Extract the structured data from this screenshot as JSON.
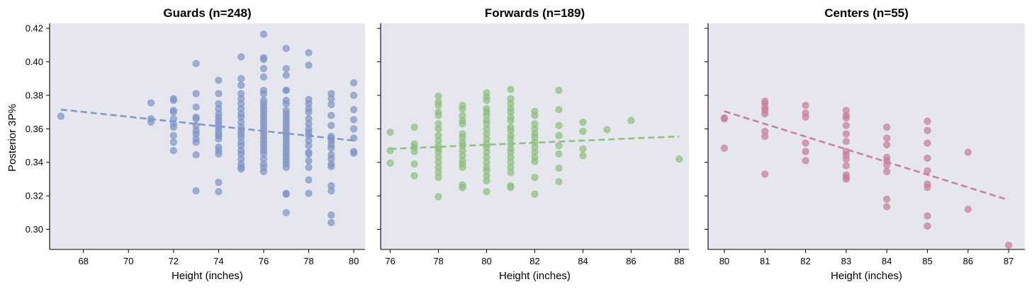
{
  "shared": {
    "ylabel": "Posterior 3P%",
    "xlabel": "Height (inches)"
  },
  "chart_data": [
    {
      "type": "scatter",
      "title": "Guards (n=248)",
      "xlabel": "Height (inches)",
      "ylabel": "Posterior 3P%",
      "color": "#7f96c8",
      "xlim": [
        66.5,
        80.5
      ],
      "ylim": [
        0.288,
        0.423
      ],
      "xticks": [
        "68",
        "70",
        "72",
        "74",
        "76",
        "78",
        "80"
      ],
      "yticks": [
        "0.30",
        "0.32",
        "0.34",
        "0.36",
        "0.38",
        "0.40",
        "0.42"
      ],
      "trend": {
        "x": [
          67,
          80
        ],
        "y": [
          0.3715,
          0.353
        ]
      },
      "points": [
        [
          67,
          0.3675
        ],
        [
          71,
          0.3755
        ],
        [
          71,
          0.366
        ],
        [
          71,
          0.364
        ],
        [
          72,
          0.378
        ],
        [
          72,
          0.377
        ],
        [
          72,
          0.371
        ],
        [
          72,
          0.37
        ],
        [
          72,
          0.366
        ],
        [
          72,
          0.363
        ],
        [
          72,
          0.361
        ],
        [
          72,
          0.356
        ],
        [
          72,
          0.352
        ],
        [
          72,
          0.347
        ],
        [
          73,
          0.399
        ],
        [
          73,
          0.381
        ],
        [
          73,
          0.373
        ],
        [
          73,
          0.367
        ],
        [
          73,
          0.366
        ],
        [
          73,
          0.362
        ],
        [
          73,
          0.359
        ],
        [
          73,
          0.357
        ],
        [
          73,
          0.354
        ],
        [
          73,
          0.352
        ],
        [
          73,
          0.3445
        ],
        [
          73,
          0.323
        ],
        [
          74,
          0.389
        ],
        [
          74,
          0.381
        ],
        [
          74,
          0.375
        ],
        [
          74,
          0.372
        ],
        [
          74,
          0.369
        ],
        [
          74,
          0.367
        ],
        [
          74,
          0.365
        ],
        [
          74,
          0.363
        ],
        [
          74,
          0.361
        ],
        [
          74,
          0.359
        ],
        [
          74,
          0.357
        ],
        [
          74,
          0.356
        ],
        [
          74,
          0.354
        ],
        [
          74,
          0.349
        ],
        [
          74,
          0.347
        ],
        [
          74,
          0.345
        ],
        [
          74,
          0.328
        ],
        [
          74,
          0.3225
        ],
        [
          75,
          0.403
        ],
        [
          75,
          0.39
        ],
        [
          75,
          0.386
        ],
        [
          75,
          0.381
        ],
        [
          75,
          0.378
        ],
        [
          75,
          0.375
        ],
        [
          75,
          0.372
        ],
        [
          75,
          0.369
        ],
        [
          75,
          0.367
        ],
        [
          75,
          0.364
        ],
        [
          75,
          0.361
        ],
        [
          75,
          0.359
        ],
        [
          75,
          0.357
        ],
        [
          75,
          0.355
        ],
        [
          75,
          0.352
        ],
        [
          75,
          0.35
        ],
        [
          75,
          0.347
        ],
        [
          75,
          0.345
        ],
        [
          75,
          0.342
        ],
        [
          75,
          0.339
        ],
        [
          75,
          0.337
        ],
        [
          75,
          0.336
        ],
        [
          76,
          0.4165
        ],
        [
          76,
          0.4025
        ],
        [
          76,
          0.4015
        ],
        [
          76,
          0.396
        ],
        [
          76,
          0.391
        ],
        [
          76,
          0.383
        ],
        [
          76,
          0.381
        ],
        [
          76,
          0.377
        ],
        [
          76,
          0.375
        ],
        [
          76,
          0.373
        ],
        [
          76,
          0.371
        ],
        [
          76,
          0.369
        ],
        [
          76,
          0.367
        ],
        [
          76,
          0.365
        ],
        [
          76,
          0.363
        ],
        [
          76,
          0.361
        ],
        [
          76,
          0.359
        ],
        [
          76,
          0.357
        ],
        [
          76,
          0.355
        ],
        [
          76,
          0.353
        ],
        [
          76,
          0.351
        ],
        [
          76,
          0.349
        ],
        [
          76,
          0.347
        ],
        [
          76,
          0.345
        ],
        [
          76,
          0.342
        ],
        [
          76,
          0.339
        ],
        [
          76,
          0.337
        ],
        [
          76,
          0.3345
        ],
        [
          77,
          0.408
        ],
        [
          77,
          0.396
        ],
        [
          77,
          0.392
        ],
        [
          77,
          0.383
        ],
        [
          77,
          0.383
        ],
        [
          77,
          0.377
        ],
        [
          77,
          0.375
        ],
        [
          77,
          0.371
        ],
        [
          77,
          0.369
        ],
        [
          77,
          0.367
        ],
        [
          77,
          0.365
        ],
        [
          77,
          0.363
        ],
        [
          77,
          0.361
        ],
        [
          77,
          0.359
        ],
        [
          77,
          0.357
        ],
        [
          77,
          0.355
        ],
        [
          77,
          0.353
        ],
        [
          77,
          0.351
        ],
        [
          77,
          0.349
        ],
        [
          77,
          0.347
        ],
        [
          77,
          0.345
        ],
        [
          77,
          0.343
        ],
        [
          77,
          0.341
        ],
        [
          77,
          0.339
        ],
        [
          77,
          0.337
        ],
        [
          77,
          0.3215
        ],
        [
          77,
          0.321
        ],
        [
          77,
          0.31
        ],
        [
          78,
          0.4055
        ],
        [
          78,
          0.398
        ],
        [
          78,
          0.3775
        ],
        [
          78,
          0.375
        ],
        [
          78,
          0.372
        ],
        [
          78,
          0.37
        ],
        [
          78,
          0.366
        ],
        [
          78,
          0.363
        ],
        [
          78,
          0.36
        ],
        [
          78,
          0.358
        ],
        [
          78,
          0.356
        ],
        [
          78,
          0.353
        ],
        [
          78,
          0.35
        ],
        [
          78,
          0.346
        ],
        [
          78,
          0.345
        ],
        [
          78,
          0.341
        ],
        [
          78,
          0.337
        ],
        [
          78,
          0.3295
        ],
        [
          78,
          0.3215
        ],
        [
          79,
          0.381
        ],
        [
          79,
          0.378
        ],
        [
          79,
          0.3745
        ],
        [
          79,
          0.368
        ],
        [
          79,
          0.362
        ],
        [
          79,
          0.3555
        ],
        [
          79,
          0.3545
        ],
        [
          79,
          0.353
        ],
        [
          79,
          0.3505
        ],
        [
          79,
          0.3485
        ],
        [
          79,
          0.3445
        ],
        [
          79,
          0.342
        ],
        [
          79,
          0.339
        ],
        [
          79,
          0.3375
        ],
        [
          79,
          0.326
        ],
        [
          79,
          0.323
        ],
        [
          79,
          0.3085
        ],
        [
          79,
          0.304
        ],
        [
          80,
          0.3875
        ],
        [
          80,
          0.38
        ],
        [
          80,
          0.3715
        ],
        [
          80,
          0.3655
        ],
        [
          80,
          0.36
        ],
        [
          80,
          0.3545
        ],
        [
          80,
          0.3465
        ],
        [
          80,
          0.3455
        ]
      ]
    },
    {
      "type": "scatter",
      "title": "Forwards (n=189)",
      "xlabel": "Height (inches)",
      "ylabel": "",
      "color": "#8fbf7f",
      "xlim": [
        75.6,
        88.4
      ],
      "ylim": [
        0.288,
        0.423
      ],
      "xticks": [
        "76",
        "78",
        "80",
        "82",
        "84",
        "86",
        "88"
      ],
      "yticks": [],
      "trend": {
        "x": [
          76,
          88
        ],
        "y": [
          0.348,
          0.3555
        ]
      },
      "points": [
        [
          76,
          0.358
        ],
        [
          76,
          0.347
        ],
        [
          76,
          0.3395
        ],
        [
          77,
          0.361
        ],
        [
          77,
          0.351
        ],
        [
          77,
          0.349
        ],
        [
          77,
          0.3465
        ],
        [
          77,
          0.339
        ],
        [
          77,
          0.332
        ],
        [
          78,
          0.3795
        ],
        [
          78,
          0.376
        ],
        [
          78,
          0.374
        ],
        [
          78,
          0.37
        ],
        [
          78,
          0.368
        ],
        [
          78,
          0.363
        ],
        [
          78,
          0.36
        ],
        [
          78,
          0.356
        ],
        [
          78,
          0.353
        ],
        [
          78,
          0.35
        ],
        [
          78,
          0.348
        ],
        [
          78,
          0.346
        ],
        [
          78,
          0.343
        ],
        [
          78,
          0.34
        ],
        [
          78,
          0.337
        ],
        [
          78,
          0.334
        ],
        [
          78,
          0.331
        ],
        [
          78,
          0.3195
        ],
        [
          79,
          0.374
        ],
        [
          79,
          0.372
        ],
        [
          79,
          0.368
        ],
        [
          79,
          0.365
        ],
        [
          79,
          0.363
        ],
        [
          79,
          0.357
        ],
        [
          79,
          0.355
        ],
        [
          79,
          0.352
        ],
        [
          79,
          0.35
        ],
        [
          79,
          0.347
        ],
        [
          79,
          0.344
        ],
        [
          79,
          0.341
        ],
        [
          79,
          0.339
        ],
        [
          79,
          0.337
        ],
        [
          79,
          0.3265
        ],
        [
          79,
          0.325
        ],
        [
          80,
          0.3815
        ],
        [
          80,
          0.379
        ],
        [
          80,
          0.377
        ],
        [
          80,
          0.372
        ],
        [
          80,
          0.37
        ],
        [
          80,
          0.368
        ],
        [
          80,
          0.365
        ],
        [
          80,
          0.363
        ],
        [
          80,
          0.36
        ],
        [
          80,
          0.357
        ],
        [
          80,
          0.354
        ],
        [
          80,
          0.351
        ],
        [
          80,
          0.349
        ],
        [
          80,
          0.346
        ],
        [
          80,
          0.343
        ],
        [
          80,
          0.34
        ],
        [
          80,
          0.337
        ],
        [
          80,
          0.335
        ],
        [
          80,
          0.332
        ],
        [
          80,
          0.329
        ],
        [
          80,
          0.3225
        ],
        [
          81,
          0.3835
        ],
        [
          81,
          0.378
        ],
        [
          81,
          0.375
        ],
        [
          81,
          0.372
        ],
        [
          81,
          0.37
        ],
        [
          81,
          0.367
        ],
        [
          81,
          0.365
        ],
        [
          81,
          0.361
        ],
        [
          81,
          0.359
        ],
        [
          81,
          0.356
        ],
        [
          81,
          0.354
        ],
        [
          81,
          0.351
        ],
        [
          81,
          0.348
        ],
        [
          81,
          0.346
        ],
        [
          81,
          0.343
        ],
        [
          81,
          0.34
        ],
        [
          81,
          0.337
        ],
        [
          81,
          0.334
        ],
        [
          81,
          0.326
        ],
        [
          81,
          0.325
        ],
        [
          82,
          0.3705
        ],
        [
          82,
          0.368
        ],
        [
          82,
          0.363
        ],
        [
          82,
          0.36
        ],
        [
          82,
          0.357
        ],
        [
          82,
          0.355
        ],
        [
          82,
          0.352
        ],
        [
          82,
          0.349
        ],
        [
          82,
          0.346
        ],
        [
          82,
          0.343
        ],
        [
          82,
          0.3405
        ],
        [
          82,
          0.331
        ],
        [
          82,
          0.321
        ],
        [
          83,
          0.383
        ],
        [
          83,
          0.3715
        ],
        [
          83,
          0.362
        ],
        [
          83,
          0.356
        ],
        [
          83,
          0.35
        ],
        [
          83,
          0.345
        ],
        [
          83,
          0.3365
        ],
        [
          83,
          0.3285
        ],
        [
          84,
          0.364
        ],
        [
          84,
          0.3585
        ],
        [
          84,
          0.348
        ],
        [
          84,
          0.344
        ],
        [
          85,
          0.3595
        ],
        [
          86,
          0.365
        ],
        [
          88,
          0.342
        ]
      ]
    },
    {
      "type": "scatter",
      "title": "Centers (n=55)",
      "xlabel": "Height (inches)",
      "ylabel": "",
      "color": "#c97f95",
      "xlim": [
        79.6,
        87.4
      ],
      "ylim": [
        0.288,
        0.423
      ],
      "xticks": [
        "80",
        "81",
        "82",
        "83",
        "84",
        "85",
        "86",
        "87"
      ],
      "yticks": [],
      "trend": {
        "x": [
          80,
          87
        ],
        "y": [
          0.3705,
          0.3175
        ]
      },
      "points": [
        [
          80,
          0.3665
        ],
        [
          80,
          0.366
        ],
        [
          80,
          0.3485
        ],
        [
          81,
          0.3765
        ],
        [
          81,
          0.375
        ],
        [
          81,
          0.3725
        ],
        [
          81,
          0.371
        ],
        [
          81,
          0.369
        ],
        [
          81,
          0.3585
        ],
        [
          81,
          0.3555
        ],
        [
          81,
          0.333
        ],
        [
          82,
          0.374
        ],
        [
          82,
          0.3695
        ],
        [
          82,
          0.367
        ],
        [
          82,
          0.3515
        ],
        [
          82,
          0.3465
        ],
        [
          82,
          0.341
        ],
        [
          83,
          0.371
        ],
        [
          83,
          0.368
        ],
        [
          83,
          0.3665
        ],
        [
          83,
          0.362
        ],
        [
          83,
          0.357
        ],
        [
          83,
          0.3525
        ],
        [
          83,
          0.3465
        ],
        [
          83,
          0.3445
        ],
        [
          83,
          0.342
        ],
        [
          83,
          0.338
        ],
        [
          83,
          0.3325
        ],
        [
          83,
          0.331
        ],
        [
          83,
          0.33
        ],
        [
          84,
          0.361
        ],
        [
          84,
          0.3545
        ],
        [
          84,
          0.3505
        ],
        [
          84,
          0.343
        ],
        [
          84,
          0.341
        ],
        [
          84,
          0.3385
        ],
        [
          84,
          0.3345
        ],
        [
          84,
          0.318
        ],
        [
          84,
          0.3135
        ],
        [
          85,
          0.3645
        ],
        [
          85,
          0.359
        ],
        [
          85,
          0.3515
        ],
        [
          85,
          0.3425
        ],
        [
          85,
          0.335
        ],
        [
          85,
          0.327
        ],
        [
          85,
          0.325
        ],
        [
          85,
          0.308
        ],
        [
          85,
          0.302
        ],
        [
          86,
          0.346
        ],
        [
          86,
          0.312
        ],
        [
          87,
          0.2905
        ]
      ]
    }
  ]
}
